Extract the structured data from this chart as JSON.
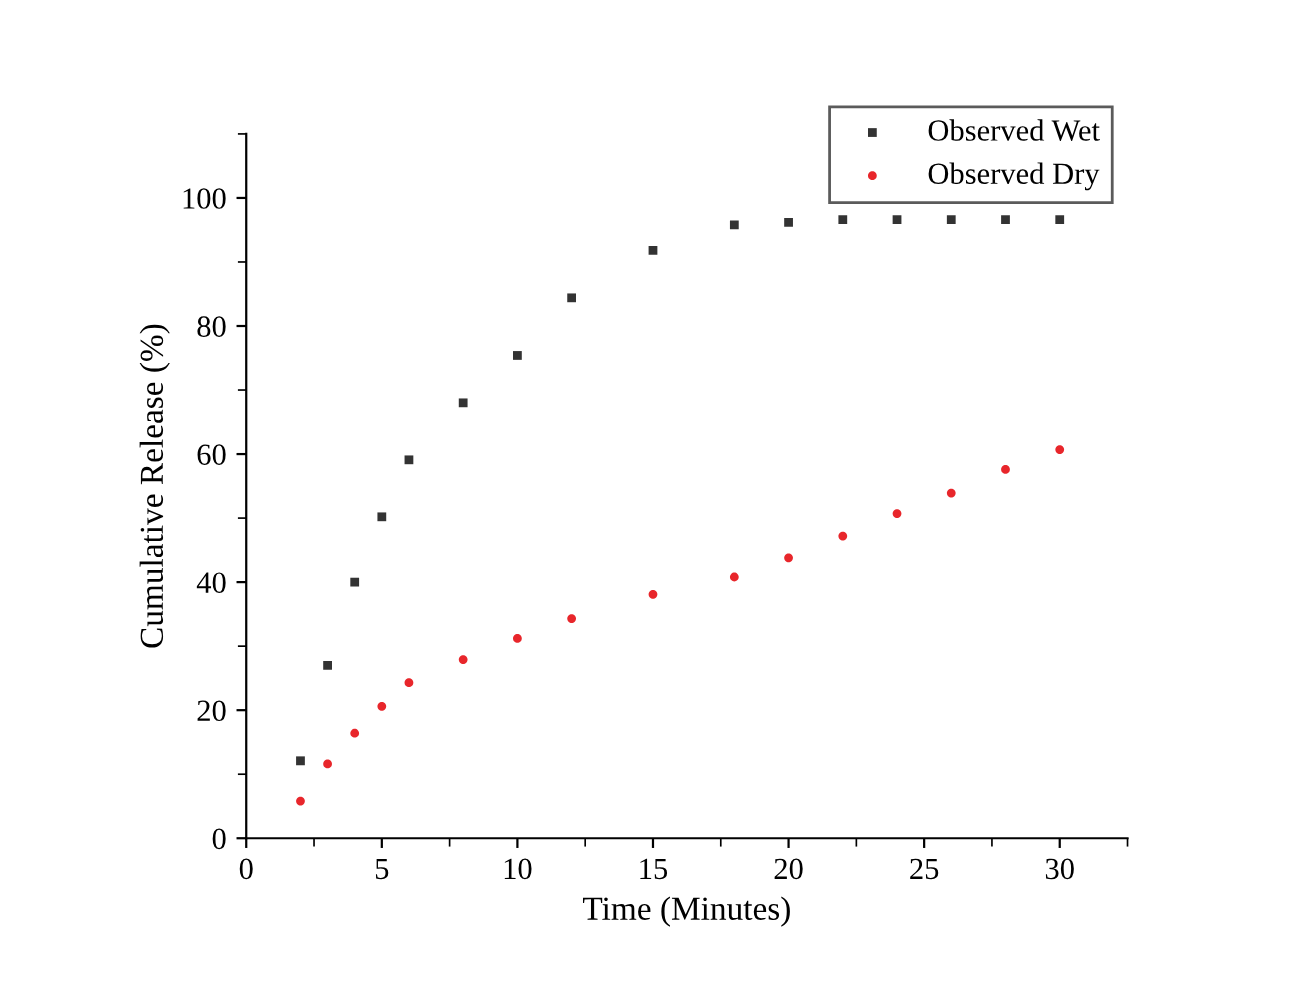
{
  "chart_data": {
    "type": "scatter",
    "xlabel": "Time (Minutes)",
    "ylabel": "Cumulative Release (%)",
    "x": [
      2,
      3,
      4,
      5,
      6,
      8,
      10,
      12,
      15,
      18,
      20,
      22,
      24,
      26,
      28,
      30
    ],
    "series": [
      {
        "name": "Observed Wet",
        "color": "#333333",
        "marker": "square",
        "values": [
          12.1,
          27.0,
          40.0,
          50.2,
          59.1,
          68.0,
          75.4,
          84.4,
          91.8,
          95.8,
          96.2,
          96.6,
          96.6,
          96.6,
          96.6,
          96.6
        ]
      },
      {
        "name": "Observed Dry",
        "color": "#e8262b",
        "marker": "circle",
        "values": [
          5.8,
          11.6,
          16.4,
          20.6,
          24.3,
          27.9,
          31.2,
          34.3,
          38.1,
          40.8,
          43.8,
          47.2,
          50.7,
          53.9,
          57.6,
          60.7
        ]
      }
    ],
    "xlim": [
      0,
      32.5
    ],
    "ylim": [
      0,
      110
    ],
    "xticks": [
      0,
      5,
      10,
      15,
      20,
      25,
      30
    ],
    "yticks": [
      0,
      20,
      40,
      60,
      80,
      100
    ],
    "grid": false,
    "legend": "top right"
  }
}
